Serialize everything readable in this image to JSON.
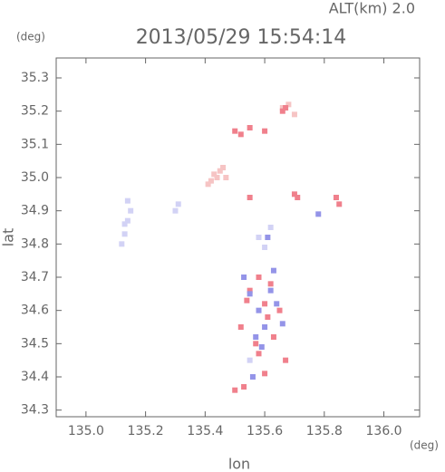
{
  "chart_data": {
    "type": "scatter",
    "title": "2013/05/29 15:54:14",
    "subtitle": "ALT(km) 2.0",
    "x_unit": "(deg)",
    "y_unit": "(deg)",
    "x_label": "lon",
    "y_label": "lat",
    "xlim": [
      134.9,
      136.12
    ],
    "ylim": [
      34.28,
      35.36
    ],
    "xticks": [
      {
        "value": 135,
        "label": "135.0"
      },
      135.2,
      135.4,
      135.6,
      135.8,
      {
        "value": 136,
        "label": "136.0"
      }
    ],
    "yticks": [
      34.3,
      34.4,
      34.5,
      34.6,
      34.7,
      34.8,
      34.9,
      {
        "value": 35,
        "label": "35.0"
      },
      35.1,
      35.2,
      35.3
    ],
    "series": [
      {
        "color": "#f6c4c4",
        "x": [
          135.42,
          135.44,
          135.45,
          135.43,
          135.41,
          135.46,
          135.47,
          135.66,
          135.68,
          135.7
        ],
        "values": [
          34.99,
          35.0,
          35.02,
          35.01,
          34.98,
          35.03,
          35.0,
          35.21,
          35.22,
          35.19
        ]
      },
      {
        "color": "#f0808c",
        "x": [
          135.5,
          135.52,
          135.55,
          135.6,
          135.66,
          135.67,
          135.55,
          135.7,
          135.71,
          135.84,
          135.85,
          135.55,
          135.58,
          135.6,
          135.62,
          135.65,
          135.52,
          135.57,
          135.63,
          135.58,
          135.61,
          135.54,
          135.6,
          135.67,
          135.5,
          135.53
        ],
        "values": [
          35.14,
          35.13,
          35.15,
          35.14,
          35.2,
          35.21,
          34.94,
          34.95,
          34.94,
          34.94,
          34.92,
          34.66,
          34.7,
          34.62,
          34.68,
          34.6,
          34.55,
          34.5,
          34.52,
          34.47,
          34.58,
          34.63,
          34.41,
          34.45,
          34.36,
          34.37
        ]
      },
      {
        "color": "#9494e8",
        "x": [
          135.55,
          135.58,
          135.62,
          135.6,
          135.64,
          135.57,
          135.53,
          135.59,
          135.63,
          135.66,
          135.78,
          135.56,
          135.61
        ],
        "values": [
          34.65,
          34.6,
          34.66,
          34.55,
          34.62,
          34.52,
          34.7,
          34.49,
          34.72,
          34.56,
          34.89,
          34.4,
          34.82
        ]
      },
      {
        "color": "#d2d2f5",
        "x": [
          135.12,
          135.13,
          135.14,
          135.15,
          135.14,
          135.13,
          135.3,
          135.31,
          135.6,
          135.58,
          135.62,
          135.55
        ],
        "values": [
          34.8,
          34.83,
          34.87,
          34.9,
          34.93,
          34.86,
          34.9,
          34.92,
          34.79,
          34.82,
          34.85,
          34.45
        ]
      }
    ]
  }
}
